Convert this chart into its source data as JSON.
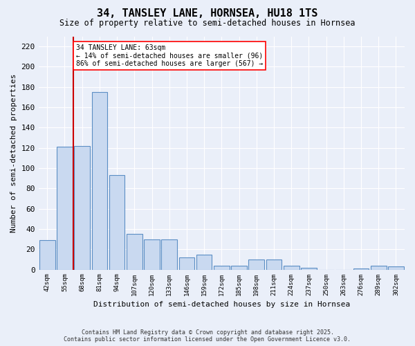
{
  "title": "34, TANSLEY LANE, HORNSEA, HU18 1TS",
  "subtitle": "Size of property relative to semi-detached houses in Hornsea",
  "xlabel": "Distribution of semi-detached houses by size in Hornsea",
  "ylabel": "Number of semi-detached properties",
  "bar_labels": [
    "42sqm",
    "55sqm",
    "68sqm",
    "81sqm",
    "94sqm",
    "107sqm",
    "120sqm",
    "133sqm",
    "146sqm",
    "159sqm",
    "172sqm",
    "185sqm",
    "198sqm",
    "211sqm",
    "224sqm",
    "237sqm",
    "250sqm",
    "263sqm",
    "276sqm",
    "289sqm",
    "302sqm"
  ],
  "bar_values": [
    29,
    121,
    122,
    175,
    93,
    35,
    30,
    30,
    12,
    15,
    4,
    4,
    10,
    10,
    4,
    2,
    0,
    0,
    1,
    4,
    3
  ],
  "bar_color": "#c9d9f0",
  "bar_edge_color": "#5b8ec4",
  "vline_color": "#cc0000",
  "annotation_text": "34 TANSLEY LANE: 63sqm\n← 14% of semi-detached houses are smaller (96)\n86% of semi-detached houses are larger (567) →",
  "ylim": [
    0,
    230
  ],
  "yticks": [
    0,
    20,
    40,
    60,
    80,
    100,
    120,
    140,
    160,
    180,
    200,
    220
  ],
  "background_color": "#eaeff9",
  "grid_color": "#ffffff",
  "footer_line1": "Contains HM Land Registry data © Crown copyright and database right 2025.",
  "footer_line2": "Contains public sector information licensed under the Open Government Licence v3.0."
}
